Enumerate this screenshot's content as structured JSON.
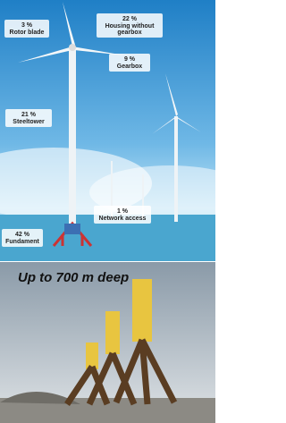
{
  "labels": [
    {
      "percent": "3 %",
      "name": "Rotor blade"
    },
    {
      "percent": "22 %",
      "name": "Housing without"
    },
    {
      "percent": "9 %",
      "name": "Gearbox"
    },
    {
      "percent": "21 %",
      "name": "Steeltower"
    },
    {
      "percent": "1 %",
      "name": "Network access"
    },
    {
      "percent": "42 %",
      "name": "Fundament"
    }
  ],
  "housing_line2": "gearbox",
  "caption": "Up to 700 m deep"
}
